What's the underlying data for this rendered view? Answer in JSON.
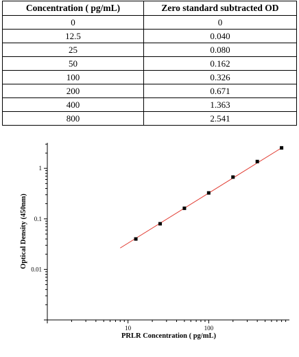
{
  "table": {
    "headers": [
      "Concentration ( pg/mL)",
      "Zero standard subtracted OD"
    ],
    "rows": [
      [
        "0",
        "0"
      ],
      [
        "12.5",
        "0.040"
      ],
      [
        "25",
        "0.080"
      ],
      [
        "50",
        "0.162"
      ],
      [
        "100",
        "0.326"
      ],
      [
        "200",
        "0.671"
      ],
      [
        "400",
        "1.363"
      ],
      [
        "800",
        "2.541"
      ]
    ]
  },
  "chart_data": {
    "type": "scatter",
    "xlabel": "PRLR Concentration ( pg/mL)",
    "ylabel": "Optical Density (450nm)",
    "x_scale": "log",
    "y_scale": "log",
    "xlim": [
      1,
      1000
    ],
    "ylim": [
      0.001,
      3.2
    ],
    "x_ticks": [
      10,
      100
    ],
    "x_tick_labels": [
      "10",
      "100"
    ],
    "y_ticks": [
      0.01,
      0.1,
      1
    ],
    "y_tick_labels": [
      "0.01",
      "0.1",
      "1"
    ],
    "grid": false,
    "points": {
      "x": [
        12.5,
        25,
        50,
        100,
        200,
        400,
        800
      ],
      "y": [
        0.04,
        0.08,
        0.162,
        0.326,
        0.671,
        1.363,
        2.541
      ],
      "color": "#000000"
    },
    "fit_line": {
      "x": [
        8,
        800
      ],
      "y": [
        0.0265,
        2.541
      ],
      "color": "#e0352b"
    }
  }
}
